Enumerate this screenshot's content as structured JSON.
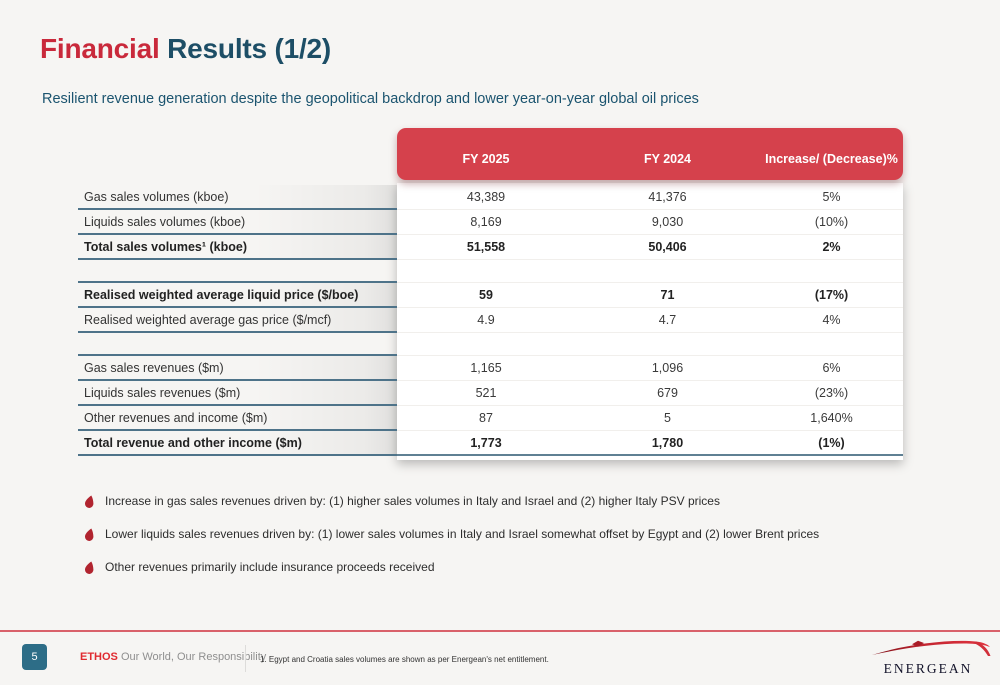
{
  "slide": {
    "title_accent": "Financial",
    "title_rest": " Results (1/2)",
    "subtitle": "Resilient revenue generation despite the geopolitical backdrop and lower year-on-year global oil prices",
    "page_number": "5",
    "ethos_label": "ETHOS",
    "ethos_tagline": " Our World, Our Responsibility",
    "footnote": "1. Egypt and Croatia sales volumes are shown as per Energean's net entitlement.",
    "logo_text": "ENERGEAN"
  },
  "colors": {
    "header_red": "#d5414c",
    "title_red": "#c9293b",
    "navy": "#1d4e66",
    "label_border_navy": "#4e7389",
    "badge_teal": "#2d6d87",
    "ethos_red": "#e02a30",
    "bullet_red": "#b1242f",
    "footer_line_red": "#d9616a",
    "background": "#f6f5f3"
  },
  "table": {
    "columns": [
      "FY 2025",
      "FY 2024",
      "Increase/ (Decrease)%"
    ],
    "rows": [
      {
        "label": "Gas sales volumes (kboe)",
        "fy2025": "43,389",
        "fy2024": "41,376",
        "change": "5%",
        "bold": false
      },
      {
        "label": "Liquids sales volumes (kboe)",
        "fy2025": "8,169",
        "fy2024": "9,030",
        "change": "(10%)",
        "bold": false
      },
      {
        "label": "Total sales volumes¹ (kboe)",
        "fy2025": "51,558",
        "fy2024": "50,406",
        "change": "2%",
        "bold": true
      },
      {
        "spacer": true
      },
      {
        "label": "Realised weighted average liquid price ($/boe)",
        "fy2025": "59",
        "fy2024": "71",
        "change": "(17%)",
        "bold": true
      },
      {
        "label": "Realised weighted average gas price ($/mcf)",
        "fy2025": "4.9",
        "fy2024": "4.7",
        "change": "4%",
        "bold": false
      },
      {
        "spacer": true
      },
      {
        "label": "Gas sales revenues ($m)",
        "fy2025": "1,165",
        "fy2024": "1,096",
        "change": "6%",
        "bold": false
      },
      {
        "label": "Liquids sales revenues ($m)",
        "fy2025": "521",
        "fy2024": "679",
        "change": "(23%)",
        "bold": false
      },
      {
        "label": "Other revenues and income ($m)",
        "fy2025": "87",
        "fy2024": "5",
        "change": "1,640%",
        "bold": false
      },
      {
        "label": "Total revenue and other income ($m)",
        "fy2025": "1,773",
        "fy2024": "1,780",
        "change": "(1%)",
        "bold": true,
        "last": true
      }
    ]
  },
  "bullets": [
    "Increase in gas sales revenues driven by: (1) higher sales volumes in Italy and Israel and (2) higher Italy PSV prices",
    "Lower liquids sales revenues driven by: (1) lower sales volumes in Italy and Israel somewhat offset by Egypt and (2) lower Brent prices",
    "Other revenues primarily include insurance proceeds received"
  ]
}
